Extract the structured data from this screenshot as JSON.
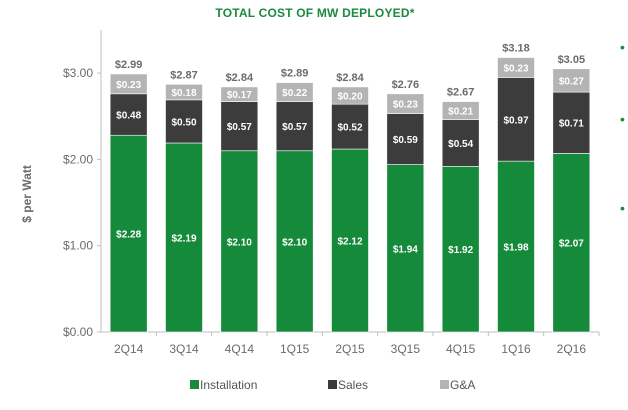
{
  "chart_data": {
    "type": "bar",
    "stacked": true,
    "title": "TOTAL COST OF MW DEPLOYED*",
    "ylabel": "$ per Watt",
    "xlabel": "",
    "ylim": [
      0,
      3.5
    ],
    "yticks": [
      0,
      1,
      2,
      3
    ],
    "ytick_labels": [
      "$0.00",
      "$1.00",
      "$2.00",
      "$3.00"
    ],
    "categories": [
      "2Q14",
      "3Q14",
      "4Q14",
      "1Q15",
      "2Q15",
      "3Q15",
      "4Q15",
      "1Q16",
      "2Q16"
    ],
    "series": [
      {
        "name": "Installation",
        "color": "#158a3a",
        "values": [
          2.28,
          2.19,
          2.1,
          2.1,
          2.12,
          1.94,
          1.92,
          1.98,
          2.07
        ],
        "labels": [
          "$2.28",
          "$2.19",
          "$2.10",
          "$2.10",
          "$2.12",
          "$1.94",
          "$1.92",
          "$1.98",
          "$2.07"
        ]
      },
      {
        "name": "Sales",
        "color": "#3c3c3c",
        "values": [
          0.48,
          0.5,
          0.57,
          0.57,
          0.52,
          0.59,
          0.54,
          0.97,
          0.71
        ],
        "labels": [
          "$0.48",
          "$0.50",
          "$0.57",
          "$0.57",
          "$0.52",
          "$0.59",
          "$0.54",
          "$0.97",
          "$0.71"
        ]
      },
      {
        "name": "G&A",
        "color": "#b4b4b4",
        "values": [
          0.23,
          0.18,
          0.17,
          0.22,
          0.2,
          0.23,
          0.21,
          0.23,
          0.27
        ],
        "labels": [
          "$0.23",
          "$0.18",
          "$0.17",
          "$0.22",
          "$0.20",
          "$0.23",
          "$0.21",
          "$0.23",
          "$0.27"
        ]
      }
    ],
    "totals": [
      2.99,
      2.87,
      2.84,
      2.89,
      2.84,
      2.76,
      2.67,
      3.18,
      3.05
    ],
    "total_labels": [
      "$2.99",
      "$2.87",
      "$2.84",
      "$2.89",
      "$2.84",
      "$2.76",
      "$2.67",
      "$3.18",
      "$3.05"
    ],
    "legend_position": "bottom",
    "grid": false
  },
  "side_bullets": [
    "•",
    "•",
    "•"
  ]
}
